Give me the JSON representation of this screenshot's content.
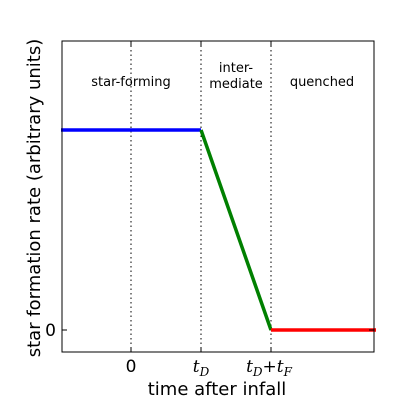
{
  "chart_data": {
    "type": "line",
    "title": "",
    "xlabel": "time after infall",
    "ylabel": "star formation rate (arbitrary units)",
    "x_ticks": [
      {
        "x": 0,
        "label": "0"
      },
      {
        "x": 1,
        "label_main": "t",
        "label_sub": "D"
      },
      {
        "x": 2,
        "label_main": "t",
        "label_sub": "D",
        "label_plus": "+t",
        "label_sub2": "F"
      }
    ],
    "y_ticks": [
      {
        "y": 0,
        "label": "0"
      }
    ],
    "xlim": [
      -1,
      3.5
    ],
    "ylim": [
      -0.12,
      1.55
    ],
    "grid": false,
    "vertical_lines": [
      {
        "x": 0,
        "style": "dotted"
      },
      {
        "x": 1,
        "style": "dotted"
      },
      {
        "x": 2,
        "style": "dotted"
      }
    ],
    "regions": [
      {
        "label_lines": [
          "star-forming"
        ],
        "x": -0.02,
        "y": 1.8
      },
      {
        "label_lines": [
          "inter-",
          "mediate"
        ],
        "x": 1.5,
        "y": 1.9
      },
      {
        "label_lines": [
          "quenched"
        ],
        "x": 2.85,
        "y": 1.8
      }
    ],
    "series": [
      {
        "color": "#0000ff",
        "x": [
          -1,
          1
        ],
        "y": [
          1,
          1
        ]
      },
      {
        "color": "#008000",
        "x": [
          1,
          2
        ],
        "y": [
          1,
          0
        ]
      },
      {
        "color": "#ff0000",
        "x": [
          2,
          3.5
        ],
        "y": [
          0,
          0
        ]
      }
    ]
  }
}
